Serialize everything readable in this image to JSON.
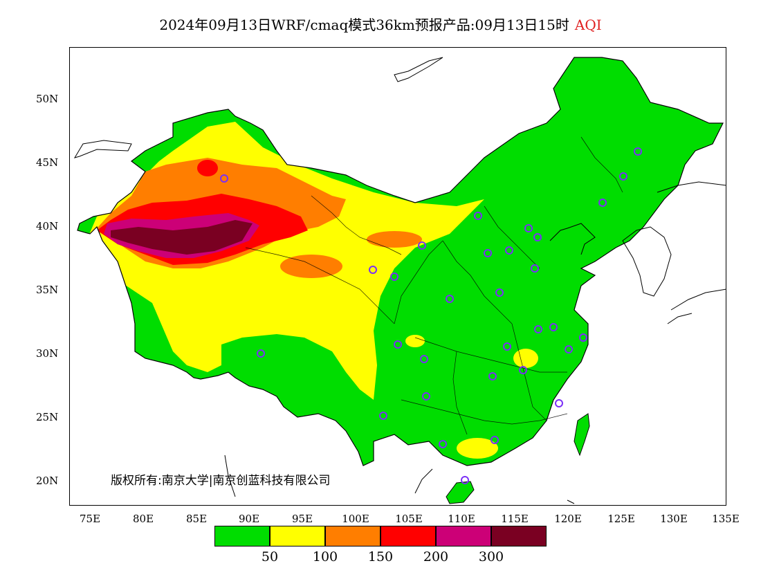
{
  "header": {
    "title": "2024年09月13日WRF/cmaq模式36km预报产品:09月13日15时",
    "variable": "AQI"
  },
  "map": {
    "y_tick_labels": [
      "50N",
      "45N",
      "40N",
      "35N",
      "30N",
      "25N",
      "20N"
    ],
    "x_tick_labels": [
      "75E",
      "80E",
      "85E",
      "90E",
      "95E",
      "100E",
      "105E",
      "110E",
      "115E",
      "120E",
      "125E",
      "130E",
      "135E"
    ],
    "lon_range": [
      73,
      135
    ],
    "lat_range": [
      18,
      54
    ]
  },
  "copyright": "版权所有:南京大学|南京创蓝科技有限公司",
  "legend": {
    "colors": [
      "#00dd00",
      "#ffff00",
      "#ff7e00",
      "#ff0000",
      "#cc0077",
      "#7a0022"
    ],
    "labels": [
      "50",
      "100",
      "150",
      "200",
      "300"
    ]
  }
}
